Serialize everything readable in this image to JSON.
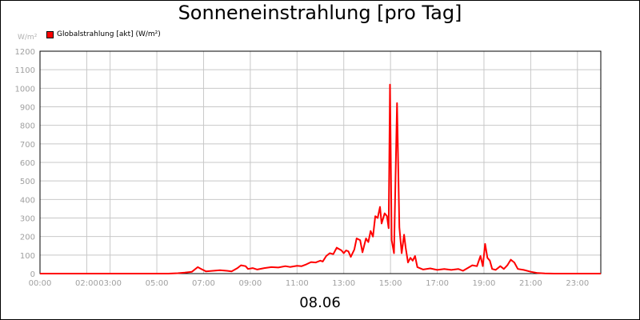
{
  "chart_data": {
    "type": "line",
    "title": "Sonneneinstrahlung [pro Tag]",
    "ylabel": "W/m²",
    "xlabel": "08.06",
    "ylim": [
      0,
      1200
    ],
    "xlim": [
      0,
      24
    ],
    "y_ticks": [
      "0",
      "100",
      "200",
      "300",
      "400",
      "500",
      "600",
      "700",
      "800",
      "900",
      "1000",
      "1100",
      "1200"
    ],
    "x_ticks": [
      {
        "hour": 0,
        "label": "00:00"
      },
      {
        "hour": 2,
        "label": "02:00"
      },
      {
        "hour": 3,
        "label": "03:00"
      },
      {
        "hour": 5,
        "label": "05:00"
      },
      {
        "hour": 7,
        "label": "07:00"
      },
      {
        "hour": 9,
        "label": "09:00"
      },
      {
        "hour": 11,
        "label": "11:00"
      },
      {
        "hour": 13,
        "label": "13:00"
      },
      {
        "hour": 15,
        "label": "15:00"
      },
      {
        "hour": 17,
        "label": "17:00"
      },
      {
        "hour": 19,
        "label": "19:00"
      },
      {
        "hour": 21,
        "label": "21:00"
      },
      {
        "hour": 23,
        "label": "23:00"
      }
    ],
    "grid": true,
    "legend_position": "top-left",
    "series": [
      {
        "name": "Globalstrahlung [akt] (W/m²)",
        "color": "#ff0000",
        "points": [
          [
            0,
            0
          ],
          [
            5.5,
            0
          ],
          [
            5.9,
            2
          ],
          [
            6.2,
            5
          ],
          [
            6.5,
            10
          ],
          [
            6.75,
            35
          ],
          [
            6.9,
            25
          ],
          [
            7.1,
            12
          ],
          [
            7.4,
            15
          ],
          [
            7.7,
            18
          ],
          [
            8.0,
            15
          ],
          [
            8.2,
            12
          ],
          [
            8.45,
            30
          ],
          [
            8.6,
            45
          ],
          [
            8.8,
            40
          ],
          [
            8.9,
            25
          ],
          [
            9.1,
            30
          ],
          [
            9.3,
            22
          ],
          [
            9.6,
            30
          ],
          [
            9.9,
            35
          ],
          [
            10.2,
            33
          ],
          [
            10.5,
            40
          ],
          [
            10.7,
            36
          ],
          [
            11.0,
            42
          ],
          [
            11.2,
            40
          ],
          [
            11.4,
            50
          ],
          [
            11.6,
            62
          ],
          [
            11.8,
            60
          ],
          [
            12.0,
            70
          ],
          [
            12.1,
            65
          ],
          [
            12.25,
            95
          ],
          [
            12.4,
            110
          ],
          [
            12.55,
            105
          ],
          [
            12.7,
            140
          ],
          [
            12.9,
            125
          ],
          [
            13.0,
            110
          ],
          [
            13.1,
            125
          ],
          [
            13.2,
            120
          ],
          [
            13.3,
            90
          ],
          [
            13.45,
            130
          ],
          [
            13.55,
            190
          ],
          [
            13.7,
            180
          ],
          [
            13.8,
            115
          ],
          [
            13.95,
            190
          ],
          [
            14.05,
            170
          ],
          [
            14.15,
            230
          ],
          [
            14.25,
            200
          ],
          [
            14.35,
            310
          ],
          [
            14.45,
            300
          ],
          [
            14.55,
            360
          ],
          [
            14.62,
            270
          ],
          [
            14.75,
            325
          ],
          [
            14.85,
            310
          ],
          [
            14.92,
            245
          ],
          [
            14.98,
            1020
          ],
          [
            15.05,
            180
          ],
          [
            15.15,
            110
          ],
          [
            15.28,
            920
          ],
          [
            15.38,
            250
          ],
          [
            15.48,
            110
          ],
          [
            15.58,
            210
          ],
          [
            15.65,
            140
          ],
          [
            15.75,
            60
          ],
          [
            15.85,
            85
          ],
          [
            15.95,
            70
          ],
          [
            16.05,
            95
          ],
          [
            16.15,
            35
          ],
          [
            16.4,
            22
          ],
          [
            16.7,
            28
          ],
          [
            17.0,
            20
          ],
          [
            17.3,
            25
          ],
          [
            17.6,
            20
          ],
          [
            17.9,
            25
          ],
          [
            18.1,
            15
          ],
          [
            18.3,
            30
          ],
          [
            18.5,
            45
          ],
          [
            18.7,
            40
          ],
          [
            18.85,
            95
          ],
          [
            18.95,
            40
          ],
          [
            19.05,
            160
          ],
          [
            19.15,
            85
          ],
          [
            19.25,
            70
          ],
          [
            19.35,
            25
          ],
          [
            19.5,
            20
          ],
          [
            19.7,
            40
          ],
          [
            19.85,
            25
          ],
          [
            20.0,
            45
          ],
          [
            20.15,
            75
          ],
          [
            20.3,
            60
          ],
          [
            20.45,
            25
          ],
          [
            20.7,
            20
          ],
          [
            21.0,
            10
          ],
          [
            21.3,
            3
          ],
          [
            21.6,
            1
          ],
          [
            22.0,
            0
          ],
          [
            24.0,
            0
          ]
        ]
      }
    ]
  }
}
